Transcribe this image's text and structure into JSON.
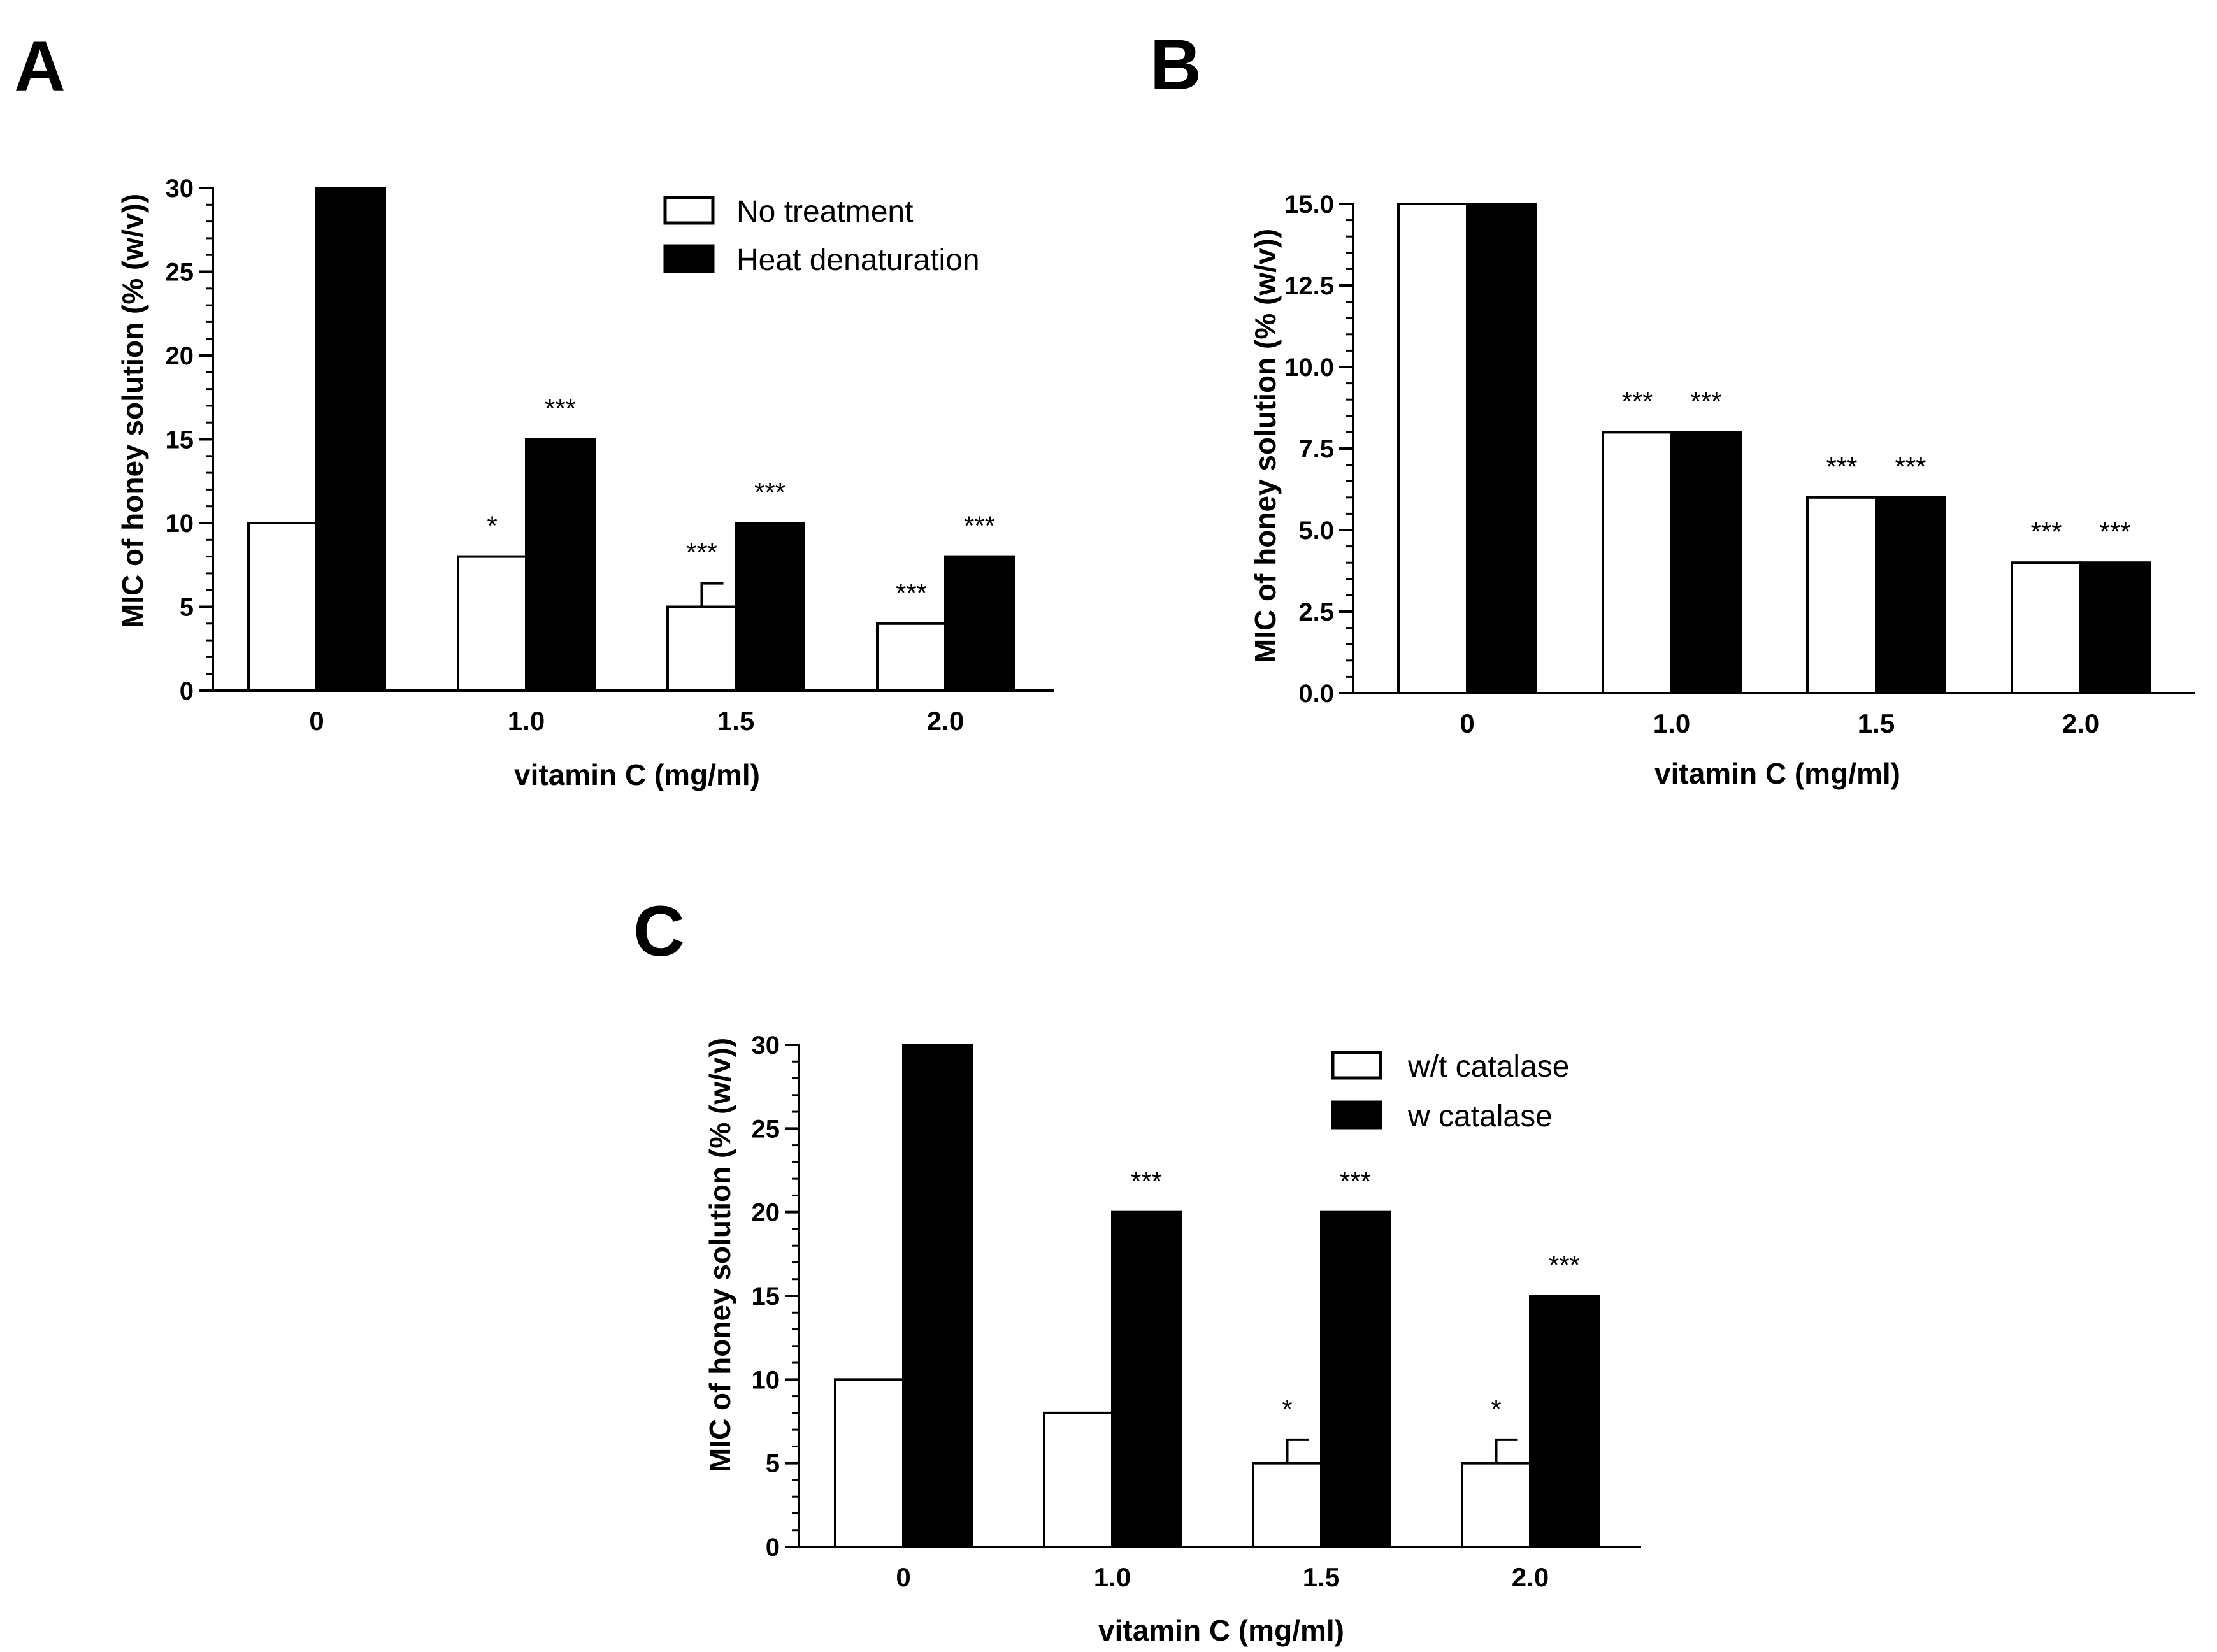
{
  "chart_data": [
    {
      "id": "A",
      "panel_label": "A",
      "type": "bar",
      "categories": [
        "0",
        "1.0",
        "1.5",
        "2.0"
      ],
      "series": [
        {
          "name": "No treatment",
          "color": "#ffffff",
          "values": [
            10,
            8,
            5,
            4
          ],
          "errors": [
            0,
            0,
            1.4,
            0
          ],
          "significance": [
            "",
            "*",
            "***",
            "***"
          ]
        },
        {
          "name": "Heat denaturation",
          "color": "#000000",
          "values": [
            30,
            15,
            10,
            8
          ],
          "errors": [
            0,
            0,
            0,
            0
          ],
          "significance": [
            "",
            "***",
            "***",
            "***"
          ]
        }
      ],
      "xlabel": "vitamin C (mg/ml)",
      "ylabel": "MIC of honey solution (% (w/v))",
      "ylim": [
        0,
        30
      ],
      "yticks": [
        0,
        5,
        10,
        15,
        20,
        25,
        30
      ],
      "ytick_labels": [
        "0",
        "5",
        "10",
        "15",
        "20",
        "25",
        "30"
      ],
      "legend": "top-right"
    },
    {
      "id": "B",
      "panel_label": "B",
      "type": "bar",
      "categories": [
        "0",
        "1.0",
        "1.5",
        "2.0"
      ],
      "series": [
        {
          "name": "",
          "color": "#ffffff",
          "values": [
            15,
            8,
            6,
            4
          ],
          "errors": [
            0,
            0,
            0,
            0
          ],
          "significance": [
            "",
            "***",
            "***",
            "***"
          ]
        },
        {
          "name": "",
          "color": "#000000",
          "values": [
            15,
            8,
            6,
            4
          ],
          "errors": [
            0,
            0,
            0,
            0
          ],
          "significance": [
            "",
            "***",
            "***",
            "***"
          ]
        }
      ],
      "xlabel": "vitamin C (mg/ml)",
      "ylabel": "MIC of honey solution (% (w/v))",
      "ylim": [
        0,
        15
      ],
      "yticks": [
        0,
        2.5,
        5,
        7.5,
        10,
        12.5,
        15
      ],
      "ytick_labels": [
        "0.0",
        "2.5",
        "5.0",
        "7.5",
        "10.0",
        "12.5",
        "15.0"
      ],
      "legend": "none"
    },
    {
      "id": "C",
      "panel_label": "C",
      "type": "bar",
      "categories": [
        "0",
        "1.0",
        "1.5",
        "2.0"
      ],
      "series": [
        {
          "name": "w/t catalase",
          "color": "#ffffff",
          "values": [
            10,
            8,
            5,
            5
          ],
          "errors": [
            0,
            0,
            1.4,
            1.4
          ],
          "significance": [
            "",
            "",
            "*",
            "*"
          ]
        },
        {
          "name": "w catalase",
          "color": "#000000",
          "values": [
            30,
            20,
            20,
            15
          ],
          "errors": [
            0,
            0,
            0,
            0
          ],
          "significance": [
            "",
            "***",
            "***",
            "***"
          ]
        }
      ],
      "xlabel": "vitamin C (mg/ml)",
      "ylabel": "MIC of honey solution (% (w/v))",
      "ylim": [
        0,
        30
      ],
      "yticks": [
        0,
        5,
        10,
        15,
        20,
        25,
        30
      ],
      "ytick_labels": [
        "0",
        "5",
        "10",
        "15",
        "20",
        "25",
        "30"
      ],
      "legend": "top-right"
    }
  ]
}
